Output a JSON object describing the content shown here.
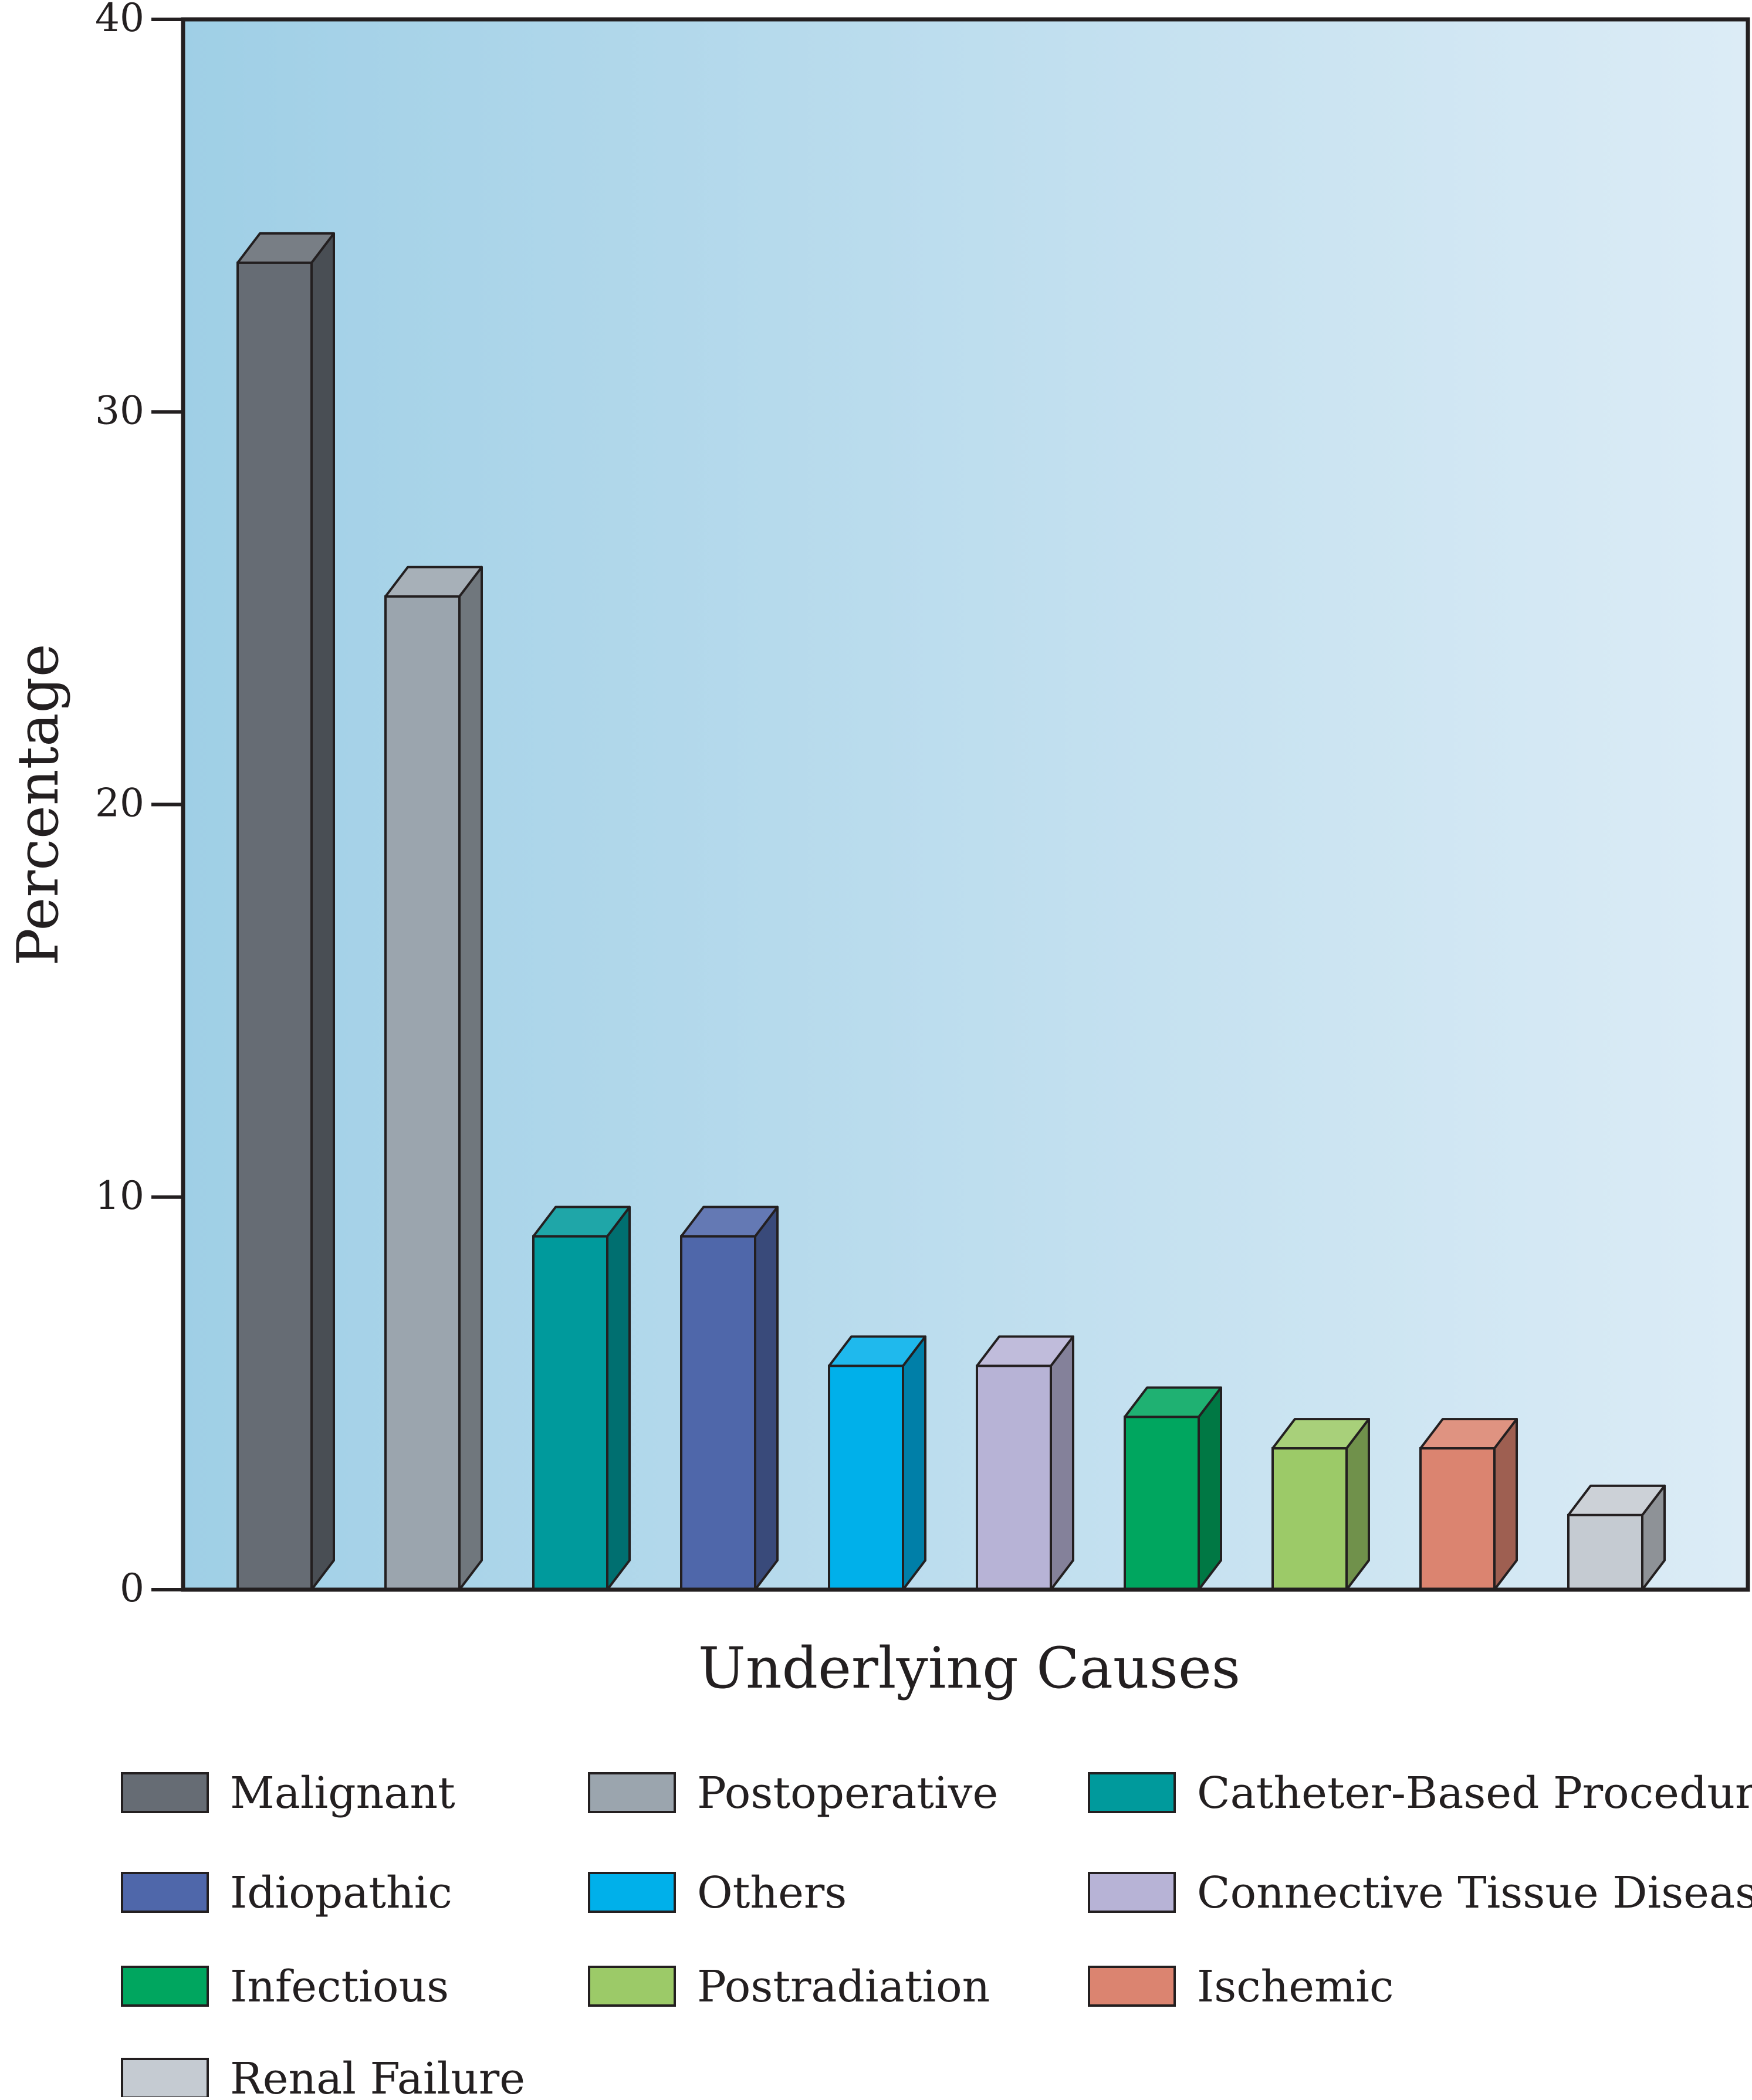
{
  "chart_data": {
    "type": "bar",
    "xlabel": "Underlying Causes",
    "ylabel": "Percentage",
    "ylim": [
      0,
      40
    ],
    "yticks": [
      0,
      10,
      20,
      30,
      40
    ],
    "ytick_labels": [
      "0",
      "10",
      "20",
      "30",
      "40"
    ],
    "grid": false,
    "legend_position": "bottom",
    "background_gradient": [
      "#9fcfe6",
      "#dcecf6"
    ],
    "categories": [
      "Malignant",
      "Postoperative",
      "Catheter-Based Procedure",
      "Idiopathic",
      "Others",
      "Connective Tissue Disease",
      "Infectious",
      "Postradiation",
      "Ischemic",
      "Renal Failure"
    ],
    "values": [
      33.8,
      25.3,
      9.0,
      9.0,
      5.7,
      5.7,
      4.4,
      3.6,
      3.6,
      1.9
    ],
    "colors": [
      "#666c74",
      "#9ba5ae",
      "#009a9c",
      "#4f67aa",
      "#00b0ea",
      "#b7b3d6",
      "#00a65f",
      "#9cca68",
      "#db8470",
      "#c5cbd2"
    ],
    "legend": [
      "Malignant",
      "Postoperative",
      "Catheter-Based Procedure",
      "Idiopathic",
      "Others",
      "Connective Tissue Disease",
      "Infectious",
      "Postradiation",
      "Ischemic",
      "Renal Failure"
    ]
  }
}
